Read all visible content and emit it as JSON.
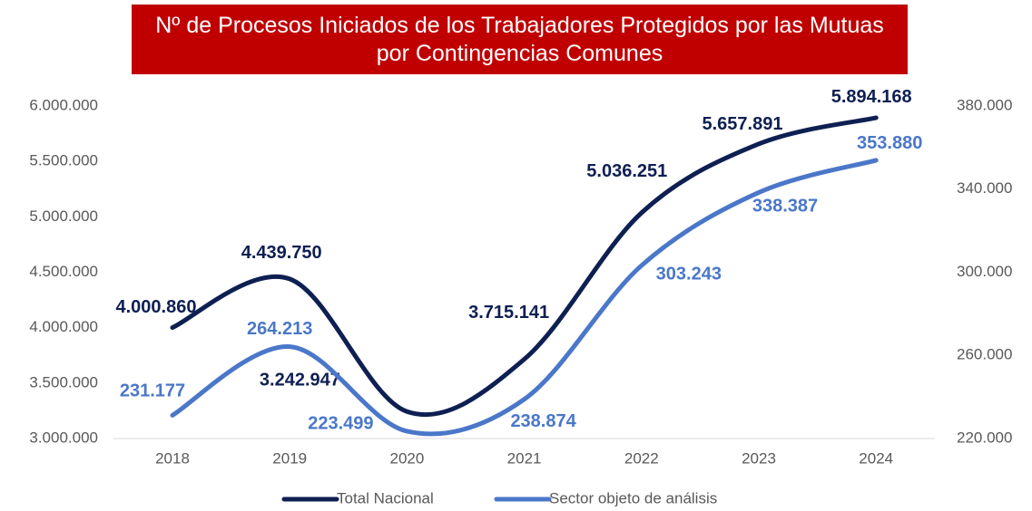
{
  "chart_data": {
    "type": "line",
    "title": "Nº de Procesos Iniciados de los Trabajadores Protegidos por las Mutuas por Contingencias Comunes",
    "categories": [
      "2018",
      "2019",
      "2020",
      "2021",
      "2022",
      "2023",
      "2024"
    ],
    "series": [
      {
        "name": "Total Nacional",
        "color": "#0e1f52",
        "values": [
          4000860,
          4439750,
          3242947,
          3715141,
          5036251,
          5657891,
          5894168
        ],
        "value_labels": [
          "4.000.860",
          "4.439.750",
          "3.242.947",
          "3.715.141",
          "5.036.251",
          "5.657.891",
          "5.894.168"
        ]
      },
      {
        "name": "Sector objeto de análisis",
        "color": "#4a77c9",
        "axis": "y2",
        "values": [
          231177,
          264213,
          223499,
          238874,
          303243,
          338387,
          353880
        ],
        "value_labels": [
          "231.177",
          "264.213",
          "223.499",
          "238.874",
          "303.243",
          "338.387",
          "353.880"
        ]
      }
    ],
    "ylim": [
      3000000,
      6000000
    ],
    "yticks": [
      {
        "value": 3000000,
        "label": "3.000.000"
      },
      {
        "value": 3500000,
        "label": "3.500.000"
      },
      {
        "value": 4000000,
        "label": "4.000.000"
      },
      {
        "value": 4500000,
        "label": "4.500.000"
      },
      {
        "value": 5000000,
        "label": "5.000.000"
      },
      {
        "value": 5500000,
        "label": "5.500.000"
      },
      {
        "value": 6000000,
        "label": "6.000.000"
      }
    ],
    "y2lim": [
      220000,
      380000
    ],
    "y2ticks": [
      {
        "value": 220000,
        "label": "220.000"
      },
      {
        "value": 260000,
        "label": "260.000"
      },
      {
        "value": 300000,
        "label": "300.000"
      },
      {
        "value": 340000,
        "label": "340.000"
      },
      {
        "value": 380000,
        "label": "380.000"
      }
    ],
    "legend": "bottom"
  }
}
